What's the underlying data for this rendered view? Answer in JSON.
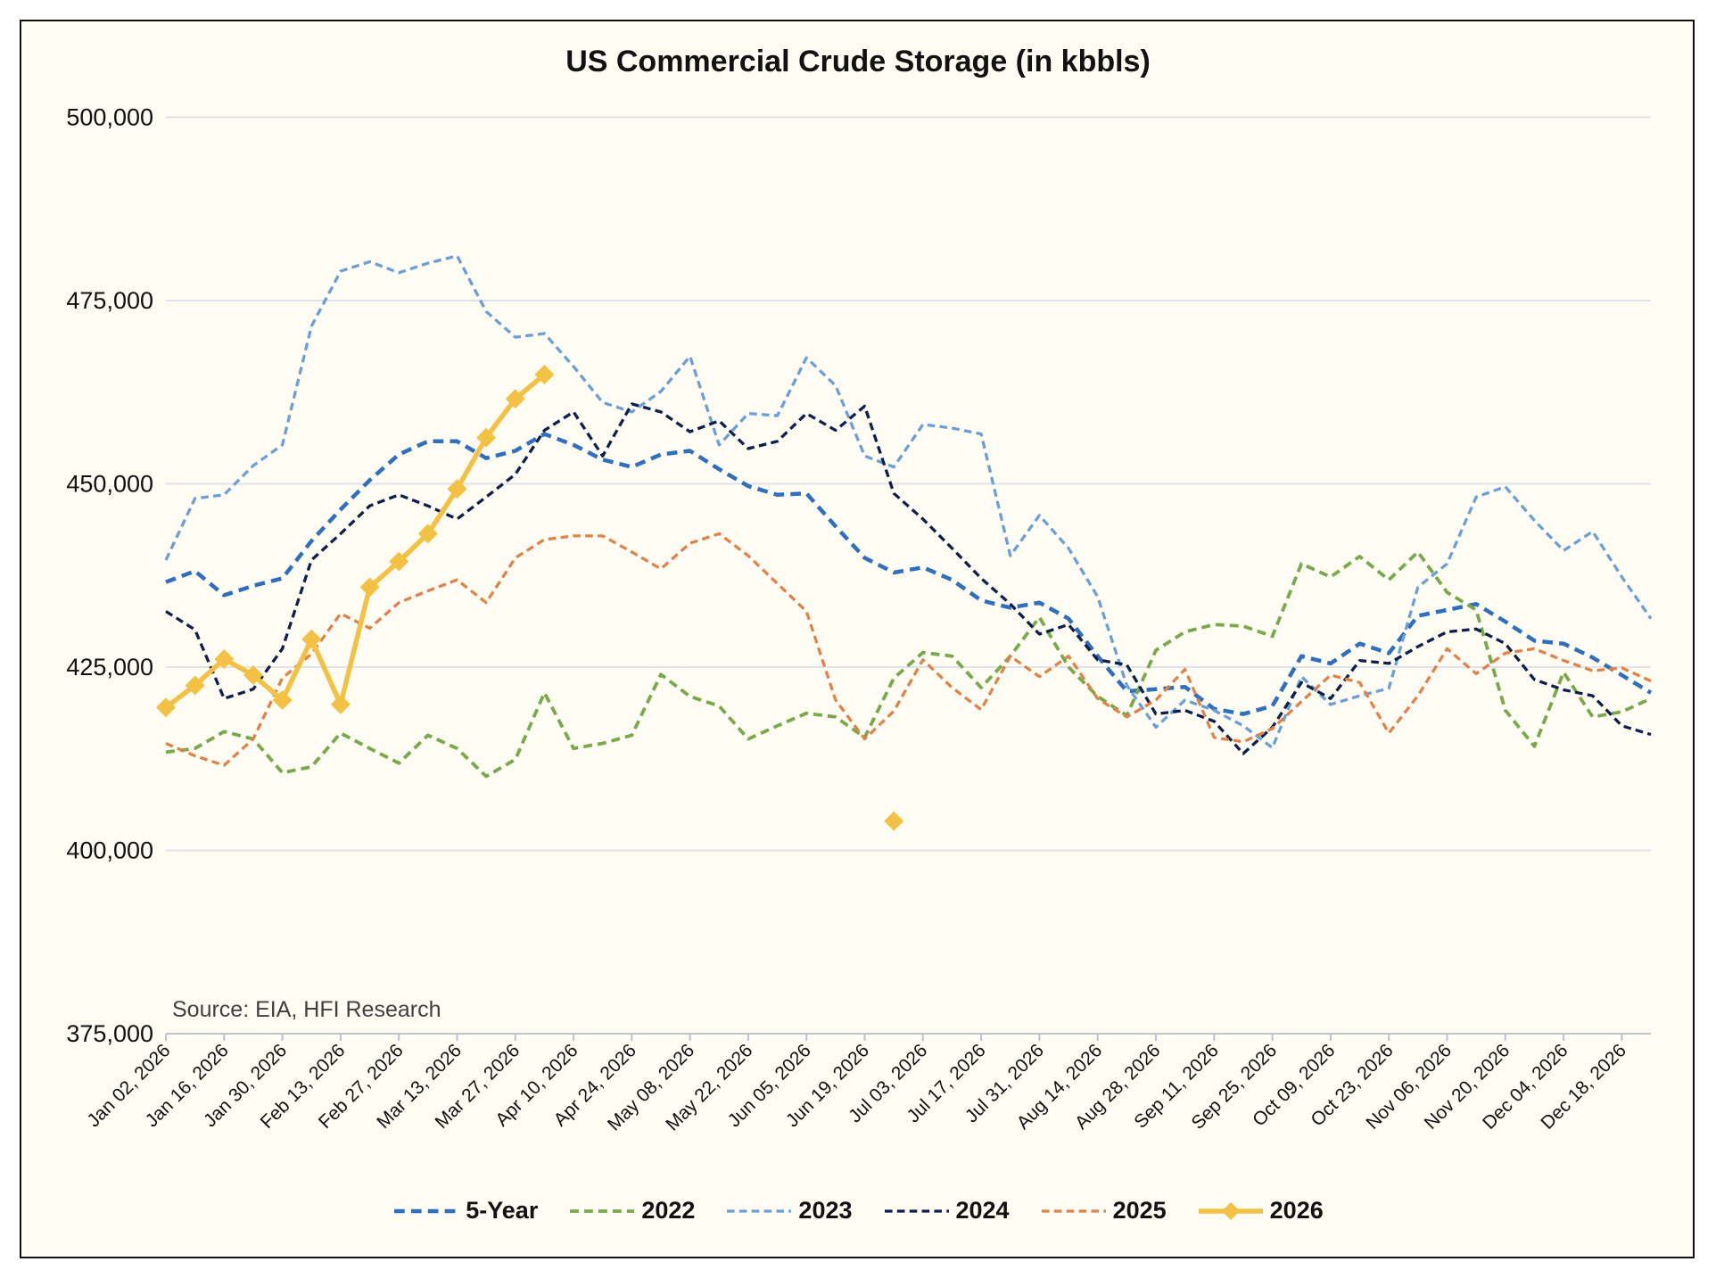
{
  "chart_data": {
    "type": "line",
    "title": "US Commercial Crude Storage (in kbbls)",
    "annotation": "Source: EIA, HFI Research",
    "xlabel": "",
    "ylabel": "",
    "ylim": [
      375000,
      500000
    ],
    "y_ticks": [
      375000,
      400000,
      425000,
      450000,
      475000,
      500000
    ],
    "y_tick_labels": [
      "375,000",
      "400,000",
      "425,000",
      "450,000",
      "475,000",
      "500,000"
    ],
    "x_points_per_year": 52,
    "x_tick_every": 2,
    "x_tick_labels": [
      "Jan 02, 2026",
      "Jan 16, 2026",
      "Jan 30, 2026",
      "Feb 13, 2026",
      "Feb 27, 2026",
      "Mar 13, 2026",
      "Mar 27, 2026",
      "Apr 10, 2026",
      "Apr 24, 2026",
      "May 08, 2026",
      "May 22, 2026",
      "Jun 05, 2026",
      "Jun 19, 2026",
      "Jul 03, 2026",
      "Jul 17, 2026",
      "Jul 31, 2026",
      "Aug 14, 2026",
      "Aug 28, 2026",
      "Sep 11, 2026",
      "Sep 25, 2026",
      "Oct 09, 2026",
      "Oct 23, 2026",
      "Nov 06, 2026",
      "Nov 20, 2026",
      "Dec 04, 2026",
      "Dec 18, 2026"
    ],
    "grid": true,
    "legend": "bottom",
    "series": [
      {
        "name": "5-Year",
        "color": "#2f6fbd",
        "style": "dashed",
        "width": 4.5,
        "values": [
          436.6,
          438.1,
          434.8,
          436.1,
          437.1,
          442.2,
          446.5,
          450.5,
          454.0,
          455.8,
          455.8,
          453.5,
          454.5,
          456.8,
          455.3,
          453.3,
          452.3,
          454.0,
          454.5,
          452.0,
          449.7,
          448.5,
          448.7,
          444.2,
          439.9,
          437.9,
          438.6,
          436.9,
          434.1,
          433.1,
          433.8,
          431.6,
          426.5,
          421.7,
          422.0,
          422.3,
          419.3,
          418.6,
          419.7,
          426.5,
          425.5,
          428.2,
          426.9,
          432.0,
          432.8,
          433.6,
          431.2,
          428.6,
          428.2,
          426.3,
          423.9,
          421.5
        ]
      },
      {
        "name": "2022",
        "color": "#79a94c",
        "style": "dashed",
        "width": 3.8,
        "values": [
          413.4,
          413.9,
          416.2,
          415.2,
          410.6,
          411.4,
          416.0,
          413.9,
          411.9,
          415.7,
          413.9,
          410.1,
          412.4,
          421.5,
          413.9,
          414.6,
          415.7,
          424.0,
          421.0,
          419.7,
          415.2,
          417.0,
          418.7,
          418.2,
          415.4,
          423.5,
          427.0,
          426.5,
          422.2,
          426.5,
          431.8,
          425.0,
          421.0,
          418.4,
          427.3,
          429.8,
          430.8,
          430.6,
          429.2,
          439.1,
          437.3,
          440.1,
          436.9,
          440.7,
          435.2,
          432.8,
          419.1,
          414.2,
          424.3,
          418.2,
          418.9,
          420.7
        ]
      },
      {
        "name": "2023",
        "color": "#6b9fd6",
        "style": "dashed",
        "width": 3.3,
        "values": [
          439.6,
          448.0,
          448.5,
          452.5,
          455.3,
          471.5,
          479.0,
          480.3,
          478.8,
          480.1,
          481.1,
          473.5,
          470.0,
          470.5,
          466.0,
          461.1,
          459.8,
          462.6,
          467.4,
          455.3,
          459.6,
          459.3,
          467.2,
          463.4,
          453.8,
          452.3,
          458.1,
          457.6,
          456.8,
          440.2,
          445.7,
          441.2,
          434.6,
          422.5,
          416.8,
          420.5,
          419.1,
          417.0,
          414.0,
          423.7,
          419.9,
          421.1,
          422.1,
          435.9,
          439.1,
          448.2,
          449.6,
          445.0,
          440.9,
          443.5,
          437.3,
          431.6
        ]
      },
      {
        "name": "2024",
        "color": "#0e1f4e",
        "style": "dashed",
        "width": 3.3,
        "values": [
          432.6,
          430.1,
          420.7,
          422.0,
          427.5,
          439.6,
          443.2,
          447.0,
          448.5,
          447.0,
          445.2,
          448.2,
          451.3,
          457.3,
          459.8,
          453.8,
          460.9,
          459.8,
          457.1,
          458.6,
          454.8,
          455.8,
          459.6,
          457.3,
          460.6,
          448.7,
          445.2,
          441.2,
          437.1,
          433.6,
          429.5,
          430.8,
          426.0,
          425.3,
          418.6,
          419.1,
          417.6,
          413.2,
          416.8,
          422.9,
          420.7,
          425.9,
          425.5,
          427.8,
          429.8,
          430.2,
          428.2,
          423.3,
          421.9,
          421.1,
          417.0,
          415.8
        ]
      },
      {
        "name": "2025",
        "color": "#e0834a",
        "style": "dashed",
        "width": 3.3,
        "values": [
          414.6,
          412.9,
          411.6,
          415.2,
          423.5,
          426.8,
          432.3,
          430.3,
          433.8,
          435.4,
          436.9,
          433.8,
          439.9,
          442.4,
          442.9,
          442.9,
          440.7,
          438.4,
          441.9,
          443.2,
          440.2,
          436.4,
          432.6,
          420.5,
          415.2,
          419.0,
          426.0,
          422.2,
          419.2,
          426.5,
          423.7,
          426.5,
          420.7,
          418.2,
          420.5,
          424.7,
          415.4,
          414.8,
          416.6,
          420.3,
          423.9,
          422.9,
          416.0,
          421.1,
          427.5,
          424.1,
          426.9,
          427.5,
          425.9,
          424.5,
          424.9,
          423.1
        ]
      },
      {
        "name": "2026",
        "color": "#f3c244",
        "style": "solid",
        "width": 5.5,
        "marker": "diamond",
        "values": [
          419.5,
          422.5,
          426.1,
          423.9,
          420.5,
          428.8,
          419.9,
          435.9,
          439.4,
          443.2,
          449.3,
          456.3,
          461.6,
          464.9,
          null,
          null,
          null,
          null,
          null,
          null,
          null,
          null,
          null,
          null,
          null,
          404.0,
          null,
          null,
          null,
          null,
          null,
          null,
          null,
          null,
          null,
          null,
          null,
          null,
          null,
          null,
          null,
          null,
          null,
          null,
          null,
          null,
          null,
          null,
          null,
          null,
          null,
          null
        ]
      }
    ],
    "value_units": "thousand barrels (values x1000)"
  },
  "colors": {
    "background": "#fefcf3",
    "grid": "#e0e3ea",
    "axis": "#bfc3cc"
  }
}
